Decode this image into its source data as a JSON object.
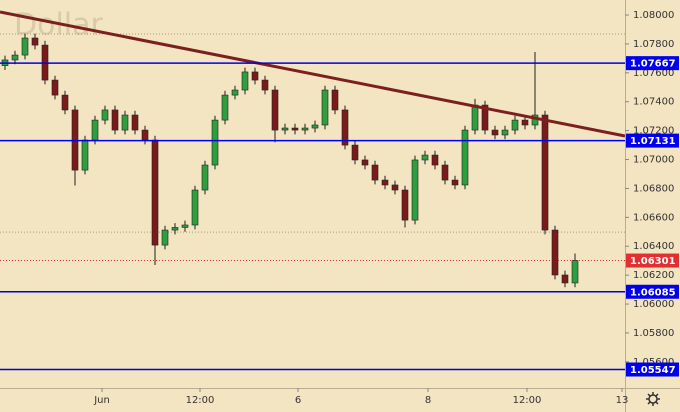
{
  "chart_data": {
    "type": "candlestick",
    "watermark": "Dollar",
    "colors": {
      "up": "#2e9e3e",
      "down": "#7a1a1a",
      "background": "#f3e4c2",
      "level": "#0000ee",
      "trend": "#7b1f1f",
      "current": "#e03030"
    },
    "x": [
      0.5,
      1.5,
      2.5,
      3.5,
      4.5,
      5.5,
      6.5,
      7.5,
      8.5,
      9.5,
      10.5,
      11.5,
      12.5,
      13.5,
      14.5,
      15.5,
      16.5,
      17.5,
      18.5,
      19.5,
      20.5,
      21.5,
      22.5,
      23.5,
      24.5,
      25.5,
      26.5,
      27.5,
      28.5,
      29.5,
      30.5,
      31.5,
      32.5,
      33.5,
      34.5,
      35.5,
      36.5,
      37.5,
      38.5,
      39.5,
      40.5,
      41.5,
      42.5,
      43.5,
      44.5,
      45.5,
      46.5,
      47.5,
      48.5,
      49.5,
      50.5,
      51.5,
      52.5,
      53.5,
      54.5,
      55.5,
      56.5,
      57.5
    ],
    "open": [
      1.0765,
      1.07689,
      1.07723,
      1.07841,
      1.07792,
      1.0755,
      1.07446,
      1.07343,
      1.06927,
      1.07135,
      1.07273,
      1.07343,
      1.07204,
      1.07308,
      1.07204,
      1.07135,
      1.06408,
      1.06512,
      1.0653,
      1.06547,
      1.06789,
      1.06962,
      1.07273,
      1.07446,
      1.07481,
      1.07606,
      1.0755,
      1.07481,
      1.07204,
      1.07218,
      1.07204,
      1.07218,
      1.07239,
      1.07481,
      1.07343,
      1.071,
      1.06997,
      1.06962,
      1.06858,
      1.06824,
      1.06789,
      1.06581,
      1.06997,
      1.07031,
      1.06962,
      1.06858,
      1.06824,
      1.07204,
      1.07377,
      1.07204,
      1.0717,
      1.07204,
      1.07273,
      1.07239,
      1.07308,
      1.06512,
      1.06201,
      1.06146
    ],
    "high": [
      1.07719,
      1.07753,
      1.07871,
      1.07871,
      1.07822,
      1.0758,
      1.07476,
      1.07373,
      1.07165,
      1.07303,
      1.07373,
      1.07373,
      1.07338,
      1.07338,
      1.07234,
      1.07165,
      1.06542,
      1.0656,
      1.06577,
      1.06819,
      1.06992,
      1.07303,
      1.07476,
      1.07511,
      1.07636,
      1.07636,
      1.0758,
      1.07511,
      1.07248,
      1.07248,
      1.07248,
      1.07269,
      1.07511,
      1.07511,
      1.07373,
      1.0713,
      1.07027,
      1.06992,
      1.06888,
      1.06854,
      1.06819,
      1.07027,
      1.07061,
      1.07061,
      1.06992,
      1.06888,
      1.07234,
      1.0742,
      1.07407,
      1.07234,
      1.07234,
      1.07303,
      1.07303,
      1.07744,
      1.07338,
      1.06542,
      1.06231,
      1.0635
    ],
    "low": [
      1.0762,
      1.07659,
      1.07693,
      1.07762,
      1.0752,
      1.07416,
      1.07313,
      1.0682,
      1.06897,
      1.07105,
      1.07243,
      1.07174,
      1.07174,
      1.07174,
      1.07105,
      1.0627,
      1.06378,
      1.06482,
      1.065,
      1.06517,
      1.06759,
      1.06932,
      1.07243,
      1.07416,
      1.07451,
      1.0752,
      1.07451,
      1.0712,
      1.07174,
      1.07174,
      1.07174,
      1.07188,
      1.07209,
      1.07313,
      1.0707,
      1.06967,
      1.06932,
      1.06828,
      1.06794,
      1.06759,
      1.0653,
      1.06551,
      1.06967,
      1.06932,
      1.06828,
      1.06794,
      1.06794,
      1.07174,
      1.07174,
      1.0714,
      1.0714,
      1.07174,
      1.07209,
      1.07209,
      1.06482,
      1.06171,
      1.06116,
      1.06116
    ],
    "close": [
      1.07689,
      1.07723,
      1.07841,
      1.07792,
      1.0755,
      1.07446,
      1.07343,
      1.06927,
      1.07135,
      1.07273,
      1.07343,
      1.07204,
      1.07308,
      1.07204,
      1.07135,
      1.06408,
      1.06512,
      1.0653,
      1.06547,
      1.06789,
      1.06962,
      1.07273,
      1.07446,
      1.07481,
      1.07606,
      1.0755,
      1.07481,
      1.07204,
      1.07218,
      1.07204,
      1.07218,
      1.07239,
      1.07481,
      1.07343,
      1.071,
      1.06997,
      1.06962,
      1.06858,
      1.06824,
      1.06789,
      1.06581,
      1.06997,
      1.07031,
      1.06962,
      1.06858,
      1.06824,
      1.07204,
      1.07377,
      1.07204,
      1.0717,
      1.07204,
      1.07273,
      1.07239,
      1.07308,
      1.06512,
      1.06201,
      1.06146,
      1.06301
    ],
    "xlim": [
      0,
      62.5
    ],
    "xticks": [
      {
        "value": 10.2,
        "label": "Jun"
      },
      {
        "value": 20.0,
        "label": "12:00"
      },
      {
        "value": 29.8,
        "label": "6"
      },
      {
        "value": 42.8,
        "label": "8"
      },
      {
        "value": 52.7,
        "label": "12:00"
      },
      {
        "value": 62.2,
        "label": "13"
      }
    ],
    "ylim": [
      1.05419,
      1.08104
    ],
    "yticks": [
      {
        "value": 1.08,
        "label": "1.08000"
      },
      {
        "value": 1.078,
        "label": "1.07800"
      },
      {
        "value": 1.076,
        "label": "1.07600"
      },
      {
        "value": 1.074,
        "label": "1.07400"
      },
      {
        "value": 1.072,
        "label": "1.07200"
      },
      {
        "value": 1.07,
        "label": "1.07000"
      },
      {
        "value": 1.068,
        "label": "1.06800"
      },
      {
        "value": 1.066,
        "label": "1.06600"
      },
      {
        "value": 1.064,
        "label": "1.06400"
      },
      {
        "value": 1.062,
        "label": "1.06200"
      },
      {
        "value": 1.06,
        "label": "1.06000"
      },
      {
        "value": 1.058,
        "label": "1.05800"
      },
      {
        "value": 1.056,
        "label": "1.05600"
      }
    ],
    "levels": [
      1.07667,
      1.07131,
      1.06085,
      1.05547
    ],
    "current_price": 1.06301,
    "dotted_levels": [
      1.07869,
      1.06498
    ],
    "trendline": {
      "x": [
        0,
        62.5
      ],
      "y": [
        1.08021,
        1.07163
      ]
    }
  }
}
